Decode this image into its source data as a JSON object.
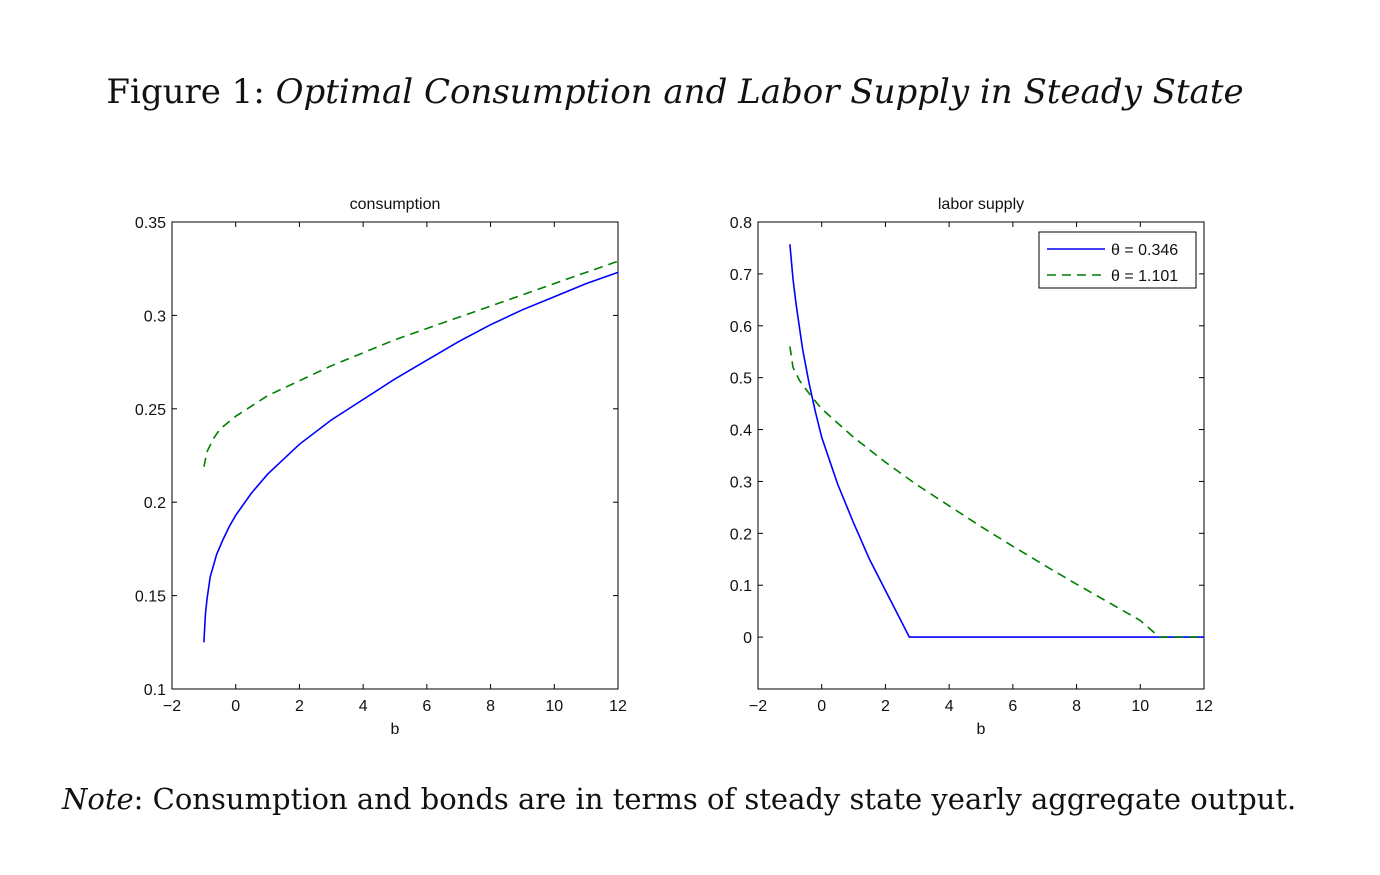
{
  "figure": {
    "label": "Figure 1:",
    "title": "Optimal Consumption and Labor Supply in Steady State"
  },
  "note": {
    "label": "Note",
    "text": ": Consumption and bonds are in terms of steady state yearly aggregate output."
  },
  "colors": {
    "theta_0346": "#0000ff",
    "theta_1101": "#007f00",
    "axes": "#000000"
  },
  "chart_data": [
    {
      "type": "line",
      "title": "consumption",
      "xlabel": "b",
      "ylabel": "",
      "xlim": [
        -2,
        12
      ],
      "ylim": [
        0.1,
        0.35
      ],
      "xticks": [
        "−2",
        "0",
        "2",
        "4",
        "6",
        "8",
        "10",
        "12"
      ],
      "yticks": [
        "0.1",
        "0.15",
        "0.2",
        "0.25",
        "0.3",
        "0.35"
      ],
      "grid": false,
      "legend": null,
      "series": [
        {
          "name": "θ = 0.346",
          "style": "solid",
          "color": "#0000ff",
          "x": [
            -1.0,
            -0.95,
            -0.9,
            -0.8,
            -0.6,
            -0.4,
            -0.2,
            0,
            0.5,
            1,
            2,
            3,
            4,
            5,
            6,
            7,
            8,
            9,
            10,
            11,
            12
          ],
          "y": [
            0.125,
            0.14,
            0.148,
            0.16,
            0.172,
            0.18,
            0.187,
            0.193,
            0.205,
            0.215,
            0.231,
            0.244,
            0.255,
            0.266,
            0.276,
            0.286,
            0.295,
            0.303,
            0.31,
            0.317,
            0.323
          ]
        },
        {
          "name": "θ = 1.101",
          "style": "dashed",
          "color": "#007f00",
          "x": [
            -1.0,
            -0.9,
            -0.7,
            -0.5,
            0,
            1,
            2,
            3,
            4,
            5,
            6,
            7,
            8,
            9,
            10,
            11,
            12
          ],
          "y": [
            0.219,
            0.227,
            0.234,
            0.239,
            0.246,
            0.257,
            0.265,
            0.273,
            0.28,
            0.287,
            0.293,
            0.299,
            0.305,
            0.311,
            0.317,
            0.323,
            0.329
          ]
        }
      ]
    },
    {
      "type": "line",
      "title": "labor supply",
      "xlabel": "b",
      "ylabel": "",
      "xlim": [
        -2,
        12
      ],
      "ylim": [
        -0.1,
        0.8
      ],
      "xticks": [
        "−2",
        "0",
        "2",
        "4",
        "6",
        "8",
        "10",
        "12"
      ],
      "yticks": [
        "0",
        "0.1",
        "0.2",
        "0.3",
        "0.4",
        "0.5",
        "0.6",
        "0.7",
        "0.8"
      ],
      "grid": false,
      "legend": "top-right",
      "series": [
        {
          "name": "θ = 0.346",
          "style": "solid",
          "color": "#0000ff",
          "x": [
            -1.0,
            -0.9,
            -0.8,
            -0.6,
            -0.4,
            -0.2,
            0,
            0.5,
            1,
            1.5,
            2,
            2.5,
            2.75,
            3,
            4,
            6,
            8,
            10,
            12
          ],
          "y": [
            0.757,
            0.69,
            0.64,
            0.555,
            0.49,
            0.435,
            0.385,
            0.295,
            0.22,
            0.15,
            0.09,
            0.03,
            0.0,
            0.0,
            0.0,
            0.0,
            0.0,
            0.0,
            0.0
          ]
        },
        {
          "name": "θ = 1.101",
          "style": "dashed",
          "color": "#007f00",
          "x": [
            -1.0,
            -0.9,
            -0.7,
            -0.5,
            -0.3,
            0,
            1,
            2,
            3,
            4,
            5,
            6,
            7,
            8,
            9,
            10,
            10.6,
            11,
            12
          ],
          "y": [
            0.56,
            0.52,
            0.495,
            0.478,
            0.462,
            0.44,
            0.385,
            0.337,
            0.293,
            0.253,
            0.213,
            0.175,
            0.138,
            0.102,
            0.067,
            0.032,
            0.0,
            0.0,
            0.0
          ]
        }
      ]
    }
  ]
}
